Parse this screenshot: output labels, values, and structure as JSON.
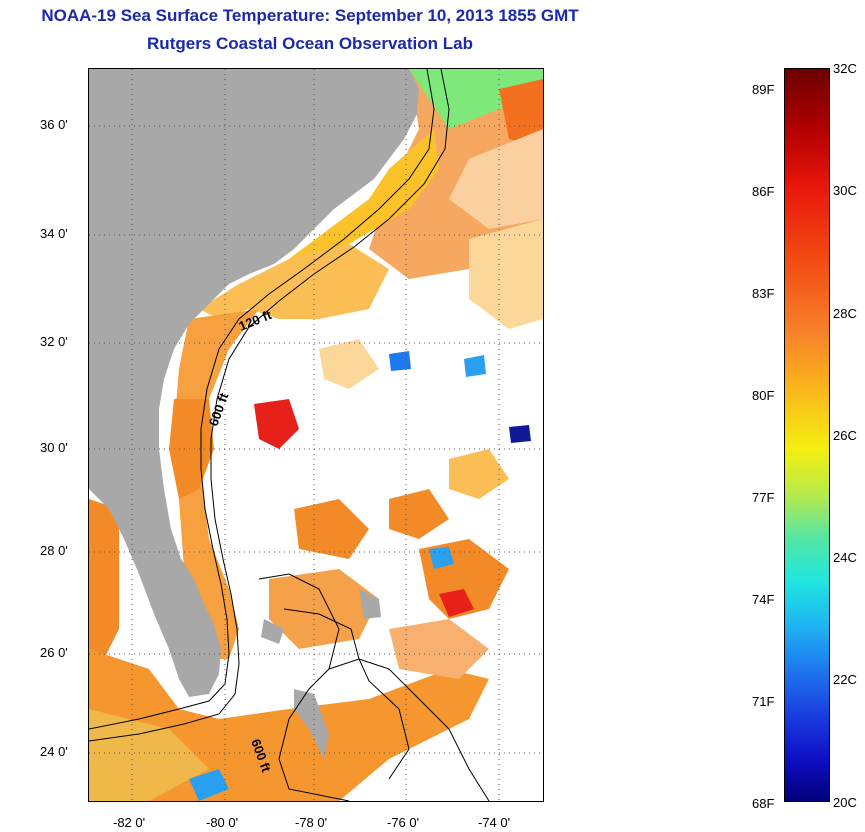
{
  "title": {
    "line1": "NOAA-19 Sea Surface Temperature:  September 10, 2013 1855 GMT",
    "line2": "Rutgers Coastal Ocean Observation Lab"
  },
  "map": {
    "lat_labels": [
      "36 0'",
      "34 0'",
      "32 0'",
      "30 0'",
      "28 0'",
      "26 0'",
      "24 0'"
    ],
    "lon_labels": [
      "-82 0'",
      "-80 0'",
      "-78 0'",
      "-76 0'",
      "-74 0'"
    ],
    "isobath_labels": [
      "120 ft",
      "600 ft",
      "600 ft"
    ],
    "colors": {
      "land": "#a8a8a8",
      "warm": "#f38a28",
      "hot": "#e8201a",
      "mild": "#fbc22a",
      "cool": "#2aa0f0",
      "cold": "#101a98",
      "green": "#6ee890"
    }
  },
  "colorbar": {
    "fahrenheit_labels": [
      "89F",
      "86F",
      "83F",
      "80F",
      "77F",
      "74F",
      "71F",
      "68F"
    ],
    "celsius_labels": [
      "32C",
      "30C",
      "28C",
      "26C",
      "24C",
      "22C",
      "20C"
    ],
    "range_c": [
      20,
      32
    ]
  }
}
